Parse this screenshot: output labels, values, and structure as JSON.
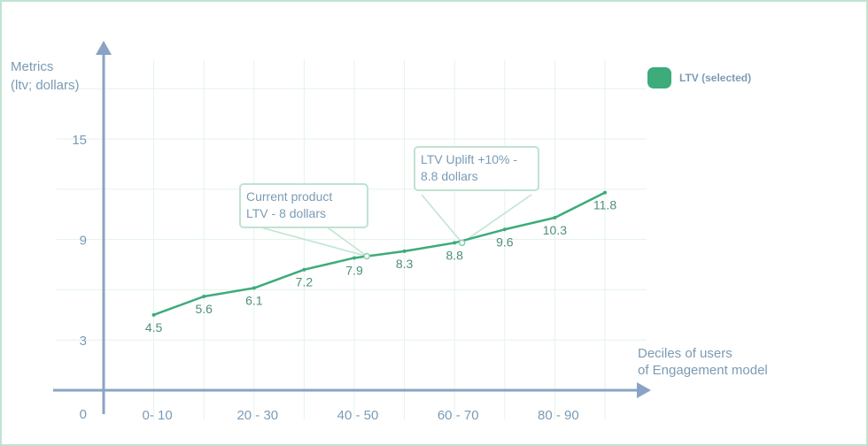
{
  "chart_data": {
    "type": "line",
    "ylabel_lines": [
      "Metrics",
      "(ltv; dollars)"
    ],
    "xlabel_lines": [
      "Deciles of users",
      "of Engagement model"
    ],
    "y_ticks": [
      {
        "value": 0,
        "label": "0"
      },
      {
        "value": 3,
        "label": "3"
      },
      {
        "value": 9,
        "label": "9"
      },
      {
        "value": 15,
        "label": "15"
      }
    ],
    "ylim": [
      0,
      20.5
    ],
    "x_tick_labels": [
      {
        "pos": 1,
        "label": "0- 10"
      },
      {
        "pos": 3,
        "label": "20 - 30"
      },
      {
        "pos": 5,
        "label": "40 - 50"
      },
      {
        "pos": 7,
        "label": "60 - 70"
      },
      {
        "pos": 9,
        "label": "80 - 90"
      }
    ],
    "grid": true,
    "series": [
      {
        "name": "LTV (selected)",
        "color": "#3dab7a",
        "values": [
          4.5,
          5.6,
          6.1,
          7.2,
          7.9,
          8.3,
          8.8,
          9.6,
          10.3,
          11.8
        ],
        "labels": [
          "4.5",
          "5.6",
          "6.1",
          "7.2",
          "7.9",
          "8.3",
          "8.8",
          "9.6",
          "10.3",
          "11.8"
        ]
      }
    ],
    "legend": {
      "position": "top-right",
      "label": "LTV (selected)",
      "color": "#3dab7a"
    },
    "annotations": [
      {
        "lines": [
          "Current product",
          "LTV - 8 dollars"
        ],
        "x": 5.25,
        "y": 8.0
      },
      {
        "lines": [
          "LTV Uplift +10% -",
          "8.8 dollars"
        ],
        "x": 7.15,
        "y": 8.8
      }
    ]
  }
}
